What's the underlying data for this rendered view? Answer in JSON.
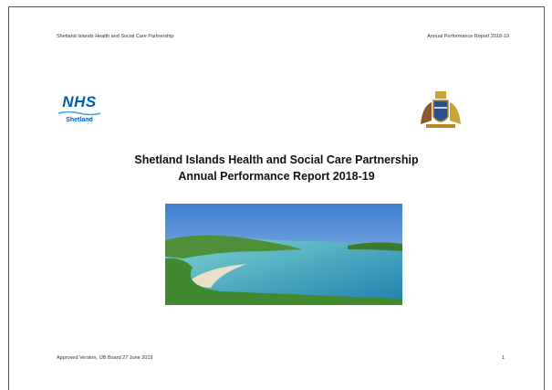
{
  "header": {
    "left": "Shetland Islands Health and Social Care Partnership",
    "right": "Annual Performance Report 2018-19"
  },
  "logo": {
    "nhs": "NHS",
    "region": "Shetland"
  },
  "title": {
    "line1": "Shetland Islands Health and Social Care Partnership",
    "line2": "Annual Performance Report 2018-19"
  },
  "footer": {
    "left": "Approved Version, IJB Board 27 June 2019",
    "page": "1"
  }
}
